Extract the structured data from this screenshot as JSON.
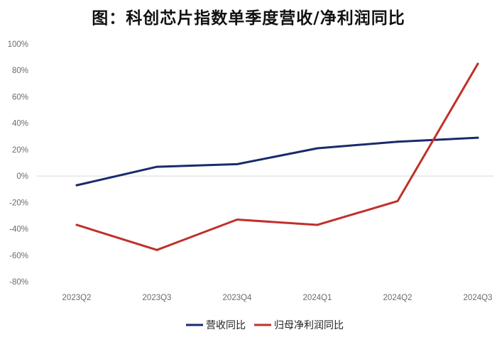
{
  "chart_data": {
    "type": "line",
    "title": "图：科创芯片指数单季度营收/净利润同比",
    "categories": [
      "2023Q2",
      "2023Q3",
      "2023Q4",
      "2024Q1",
      "2024Q2",
      "2024Q3"
    ],
    "y_ticks": [
      "100%",
      "80%",
      "60%",
      "40%",
      "20%",
      "0%",
      "-20%",
      "-40%",
      "-60%",
      "-80%"
    ],
    "ylim": [
      -80,
      100
    ],
    "y_unit": "%",
    "grid": "zero line only",
    "legend_position": "bottom-center",
    "series": [
      {
        "name": "营收同比",
        "color": "#1a2a6c",
        "values": [
          -7,
          7,
          9,
          21,
          26,
          29
        ]
      },
      {
        "name": "归母净利润同比",
        "color": "#c0302a",
        "values": [
          -37,
          -56,
          -33,
          -37,
          -19,
          85
        ]
      }
    ]
  }
}
